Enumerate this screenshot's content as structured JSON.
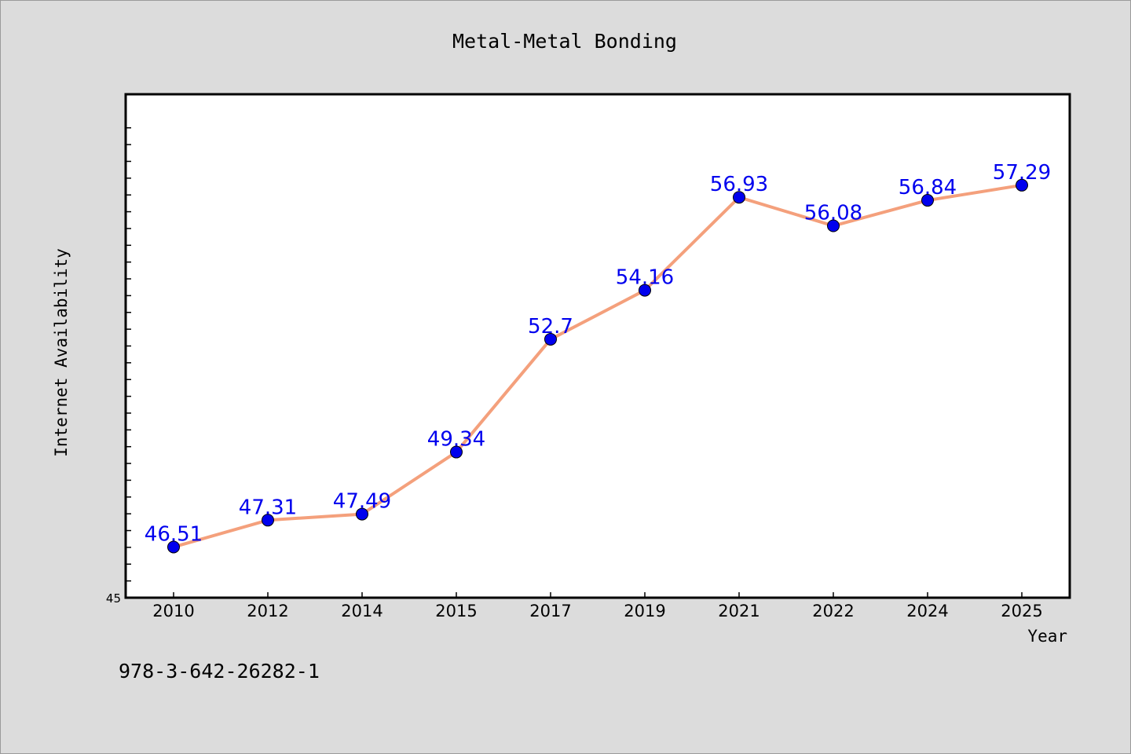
{
  "chart_data": {
    "type": "line",
    "title": "Metal-Metal Bonding",
    "xlabel": "Year",
    "ylabel": "Internet Availability",
    "categories": [
      "2010",
      "2012",
      "2014",
      "2015",
      "2017",
      "2019",
      "2021",
      "2022",
      "2024",
      "2025"
    ],
    "series": [
      {
        "values": [
          46.51,
          47.31,
          47.49,
          49.34,
          52.7,
          54.16,
          56.93,
          56.08,
          56.84,
          57.29
        ],
        "data_labels": [
          "46.51",
          "47.31",
          "47.49",
          "49.34",
          "52.7",
          "54.16",
          "56.93",
          "56.08",
          "56.84",
          "57.29"
        ]
      }
    ],
    "ylim": [
      45,
      60
    ],
    "y_tick_labels": [
      "45"
    ],
    "grid": false,
    "legend": "none",
    "colors": {
      "line": "#f4a07c",
      "marker": "#0000ee",
      "data_label": "#0000ee",
      "plot_background": "#ffffff",
      "figure_background": "#dcdcdc"
    }
  },
  "footer": {
    "text": "978-3-642-26282-1"
  }
}
